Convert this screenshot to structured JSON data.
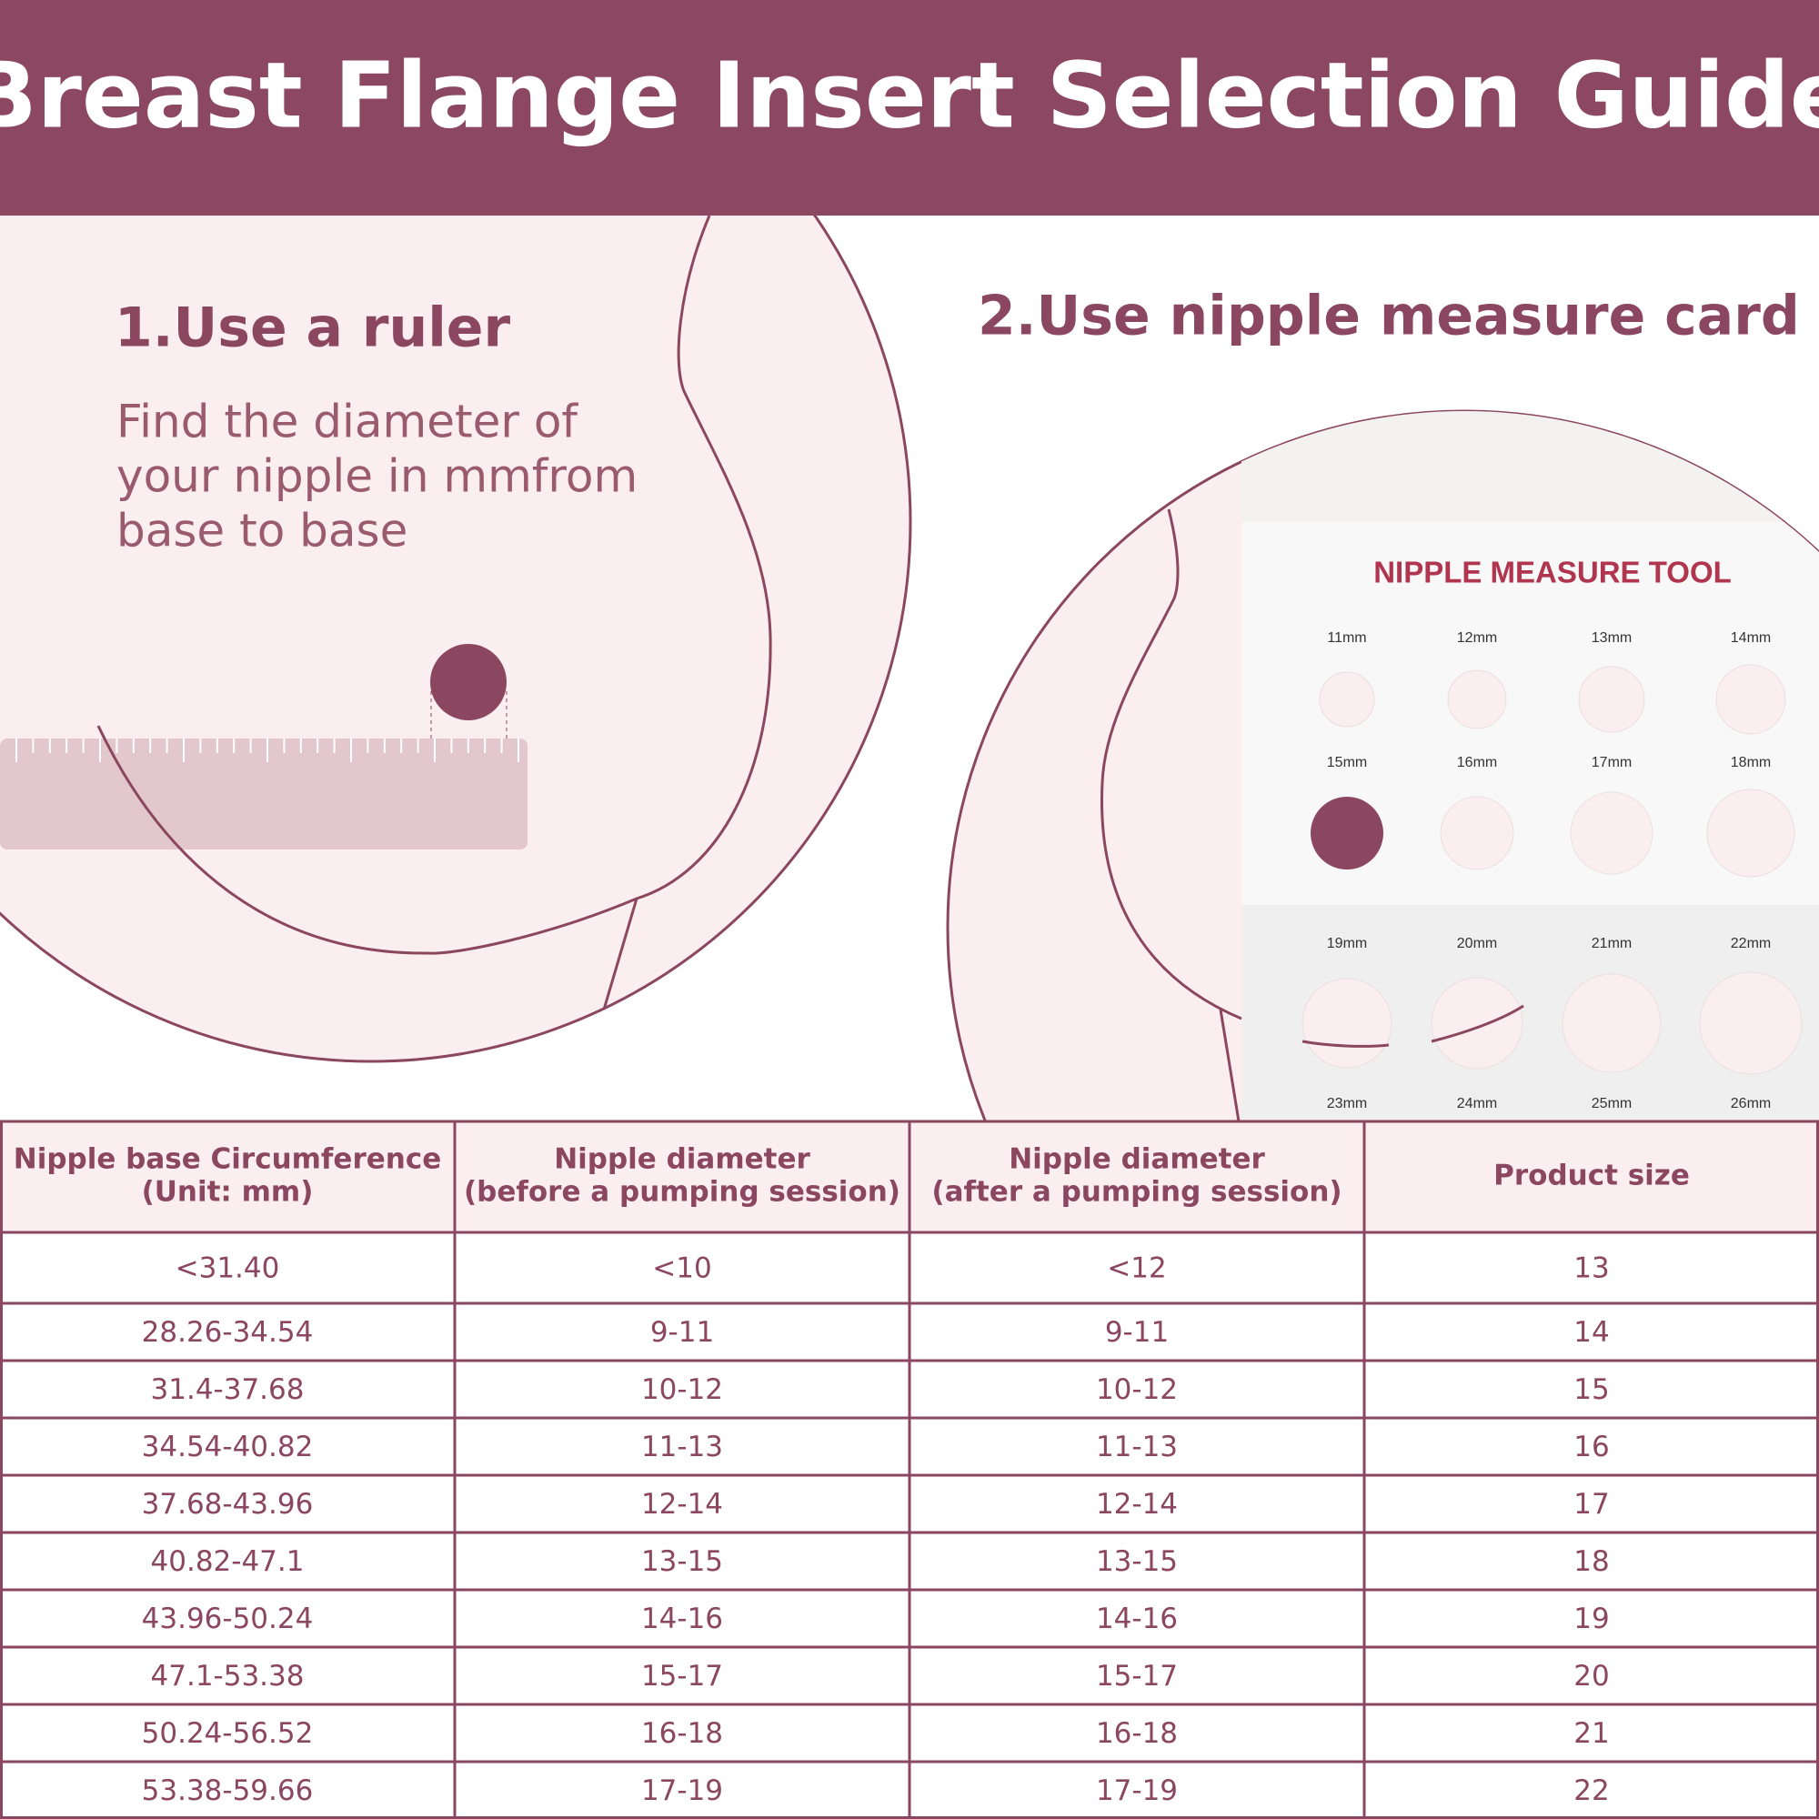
{
  "header": {
    "title": "Breast Flange Insert Selection Guide"
  },
  "step1": {
    "title": "1.Use a ruler",
    "text": [
      "Find the diameter of",
      "your nipple in mmfrom",
      "base to base"
    ]
  },
  "step2": {
    "title": "2.Use nipple measure card"
  },
  "card": {
    "title": "NIPPLE MEASURE TOOL",
    "sizes": [
      "11mm",
      "12mm",
      "13mm",
      "14mm",
      "15mm",
      "16mm",
      "17mm",
      "18mm",
      "19mm",
      "20mm",
      "21mm",
      "22mm",
      "23mm",
      "24mm",
      "25mm",
      "26mm"
    ]
  },
  "table": {
    "columns": [
      [
        "Nipple base Circumference",
        "(Unit: mm)"
      ],
      [
        "Nipple diameter",
        "(before a pumping session)"
      ],
      [
        "Nipple diameter",
        "(after a pumping session)"
      ],
      [
        "Product size"
      ]
    ],
    "rows": [
      [
        "<31.40",
        "<10",
        "<12",
        "13"
      ],
      [
        "28.26-34.54",
        "9-11",
        "9-11",
        "14"
      ],
      [
        "31.4-37.68",
        "10-12",
        "10-12",
        "15"
      ],
      [
        "34.54-40.82",
        "11-13",
        "11-13",
        "16"
      ],
      [
        "37.68-43.96",
        "12-14",
        "12-14",
        "17"
      ],
      [
        "40.82-47.1",
        "13-15",
        "13-15",
        "18"
      ],
      [
        "43.96-50.24",
        "14-16",
        "14-16",
        "19"
      ],
      [
        "47.1-53.38",
        "15-17",
        "15-17",
        "20"
      ],
      [
        "50.24-56.52",
        "16-18",
        "16-18",
        "21"
      ],
      [
        "53.38-59.66",
        "17-19",
        "17-19",
        "22"
      ]
    ]
  }
}
